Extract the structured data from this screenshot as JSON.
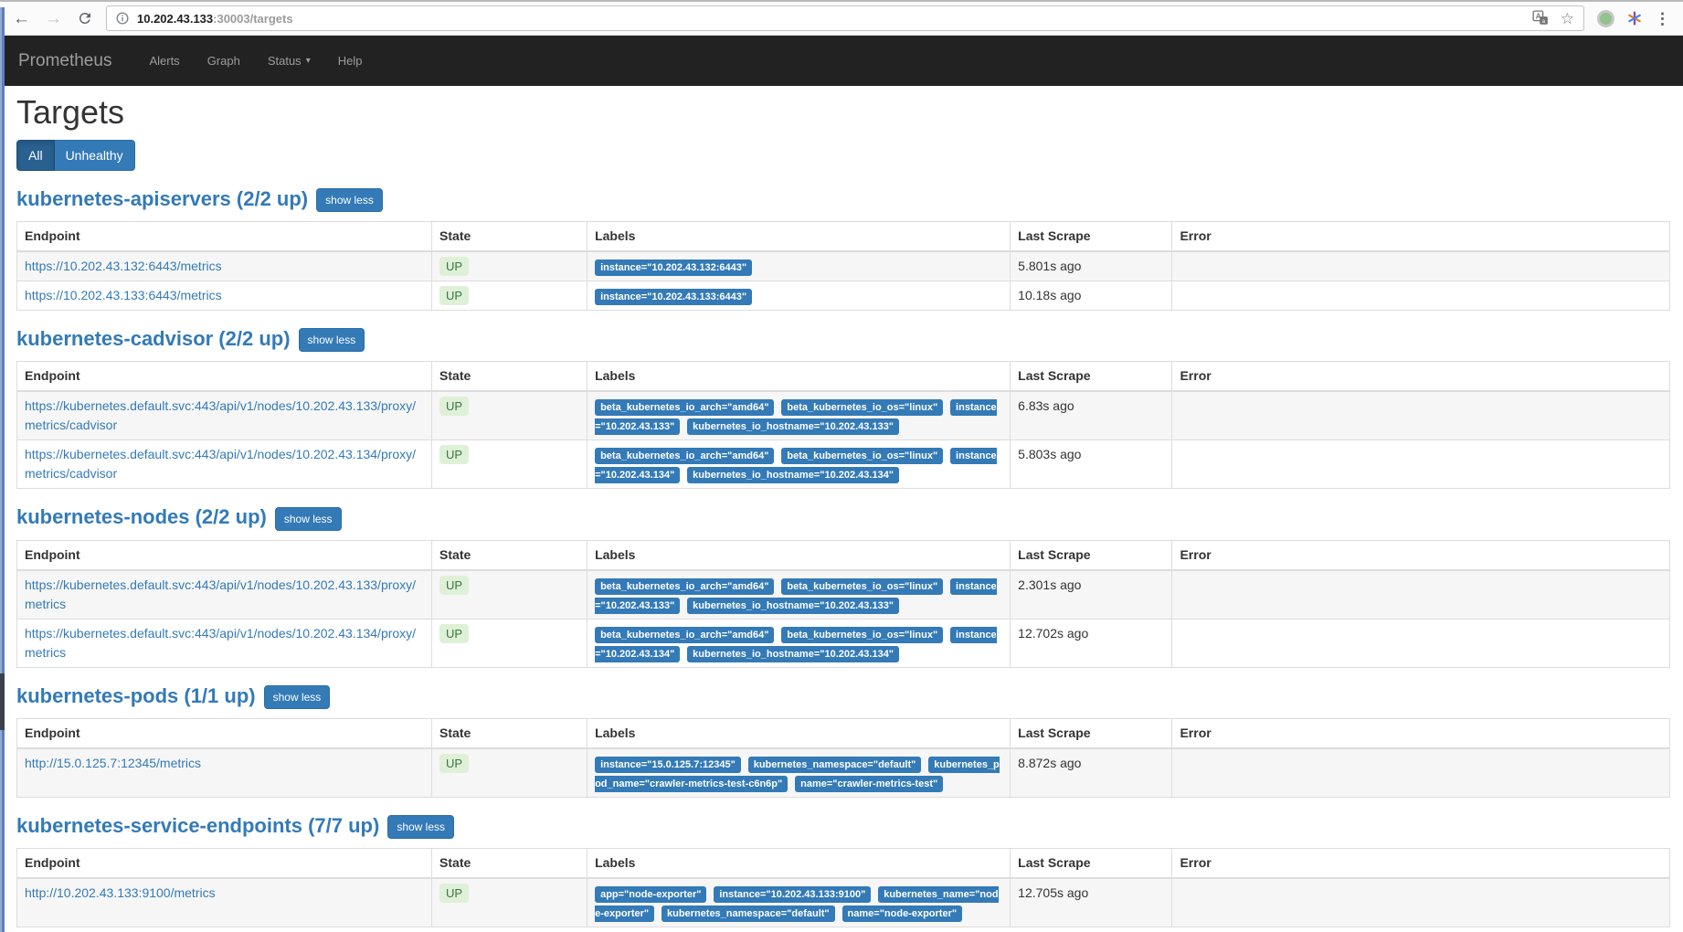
{
  "browser": {
    "url": {
      "host": "10.202.43.133",
      "rest": ":30003/targets"
    },
    "glyphs": {
      "back": "←",
      "forward": "→",
      "star": "☆",
      "menu_dots": "⋮",
      "caret": "▾"
    },
    "icons": [
      "back-arrow-icon",
      "forward-arrow-icon",
      "reload-icon",
      "page-info-icon",
      "translate-icon",
      "bookmark-star-icon",
      "extension-green-dot-icon",
      "extension-asterisk-icon",
      "browser-menu-icon"
    ]
  },
  "navbar": {
    "brand": "Prometheus",
    "items": [
      {
        "label": "Alerts",
        "caret": false
      },
      {
        "label": "Graph",
        "caret": false
      },
      {
        "label": "Status",
        "caret": true
      },
      {
        "label": "Help",
        "caret": false
      }
    ]
  },
  "page": {
    "title": "Targets",
    "filters": [
      {
        "label": "All",
        "active": true
      },
      {
        "label": "Unhealthy",
        "active": false
      }
    ],
    "show_less_label": "show less",
    "columns": [
      "Endpoint",
      "State",
      "Labels",
      "Last Scrape",
      "Error"
    ]
  },
  "jobs": [
    {
      "name": "kubernetes-apiservers (2/2 up)",
      "targets": [
        {
          "endpoint": "https://10.202.43.132:6443/metrics",
          "state": "UP",
          "labels": [
            "instance=\"10.202.43.132:6443\""
          ],
          "last_scrape": "5.801s ago",
          "error": ""
        },
        {
          "endpoint": "https://10.202.43.133:6443/metrics",
          "state": "UP",
          "labels": [
            "instance=\"10.202.43.133:6443\""
          ],
          "last_scrape": "10.18s ago",
          "error": ""
        }
      ]
    },
    {
      "name": "kubernetes-cadvisor (2/2 up)",
      "targets": [
        {
          "endpoint": "https://kubernetes.default.svc:443/api/v1/nodes/10.202.43.133/proxy/metrics/cadvisor",
          "state": "UP",
          "labels": [
            "beta_kubernetes_io_arch=\"amd64\"",
            "beta_kubernetes_io_os=\"linux\"",
            "instance=\"10.202.43.133\"",
            "kubernetes_io_hostname=\"10.202.43.133\""
          ],
          "last_scrape": "6.83s ago",
          "error": ""
        },
        {
          "endpoint": "https://kubernetes.default.svc:443/api/v1/nodes/10.202.43.134/proxy/metrics/cadvisor",
          "state": "UP",
          "labels": [
            "beta_kubernetes_io_arch=\"amd64\"",
            "beta_kubernetes_io_os=\"linux\"",
            "instance=\"10.202.43.134\"",
            "kubernetes_io_hostname=\"10.202.43.134\""
          ],
          "last_scrape": "5.803s ago",
          "error": ""
        }
      ]
    },
    {
      "name": "kubernetes-nodes (2/2 up)",
      "targets": [
        {
          "endpoint": "https://kubernetes.default.svc:443/api/v1/nodes/10.202.43.133/proxy/metrics",
          "state": "UP",
          "labels": [
            "beta_kubernetes_io_arch=\"amd64\"",
            "beta_kubernetes_io_os=\"linux\"",
            "instance=\"10.202.43.133\"",
            "kubernetes_io_hostname=\"10.202.43.133\""
          ],
          "last_scrape": "2.301s ago",
          "error": ""
        },
        {
          "endpoint": "https://kubernetes.default.svc:443/api/v1/nodes/10.202.43.134/proxy/metrics",
          "state": "UP",
          "labels": [
            "beta_kubernetes_io_arch=\"amd64\"",
            "beta_kubernetes_io_os=\"linux\"",
            "instance=\"10.202.43.134\"",
            "kubernetes_io_hostname=\"10.202.43.134\""
          ],
          "last_scrape": "12.702s ago",
          "error": ""
        }
      ]
    },
    {
      "name": "kubernetes-pods (1/1 up)",
      "targets": [
        {
          "endpoint": "http://15.0.125.7:12345/metrics",
          "state": "UP",
          "labels": [
            "instance=\"15.0.125.7:12345\"",
            "kubernetes_namespace=\"default\"",
            "kubernetes_pod_name=\"crawler-metrics-test-c6n6p\"",
            "name=\"crawler-metrics-test\""
          ],
          "last_scrape": "8.872s ago",
          "error": ""
        }
      ]
    },
    {
      "name": "kubernetes-service-endpoints (7/7 up)",
      "targets": [
        {
          "endpoint": "http://10.202.43.133:9100/metrics",
          "state": "UP",
          "labels": [
            "app=\"node-exporter\"",
            "instance=\"10.202.43.133:9100\"",
            "kubernetes_name=\"node-exporter\"",
            "kubernetes_namespace=\"default\"",
            "name=\"node-exporter\""
          ],
          "last_scrape": "12.705s ago",
          "error": ""
        }
      ]
    }
  ],
  "colors": {
    "accent_blue": "#337ab7",
    "active_blue": "#286090",
    "navbar_bg": "#222222",
    "up_badge_bg": "#dff0d8",
    "up_badge_text": "#3c763d",
    "label_badge_bg": "#337ab7",
    "table_border": "#dddddd",
    "stripe": "#f6f6f6"
  }
}
